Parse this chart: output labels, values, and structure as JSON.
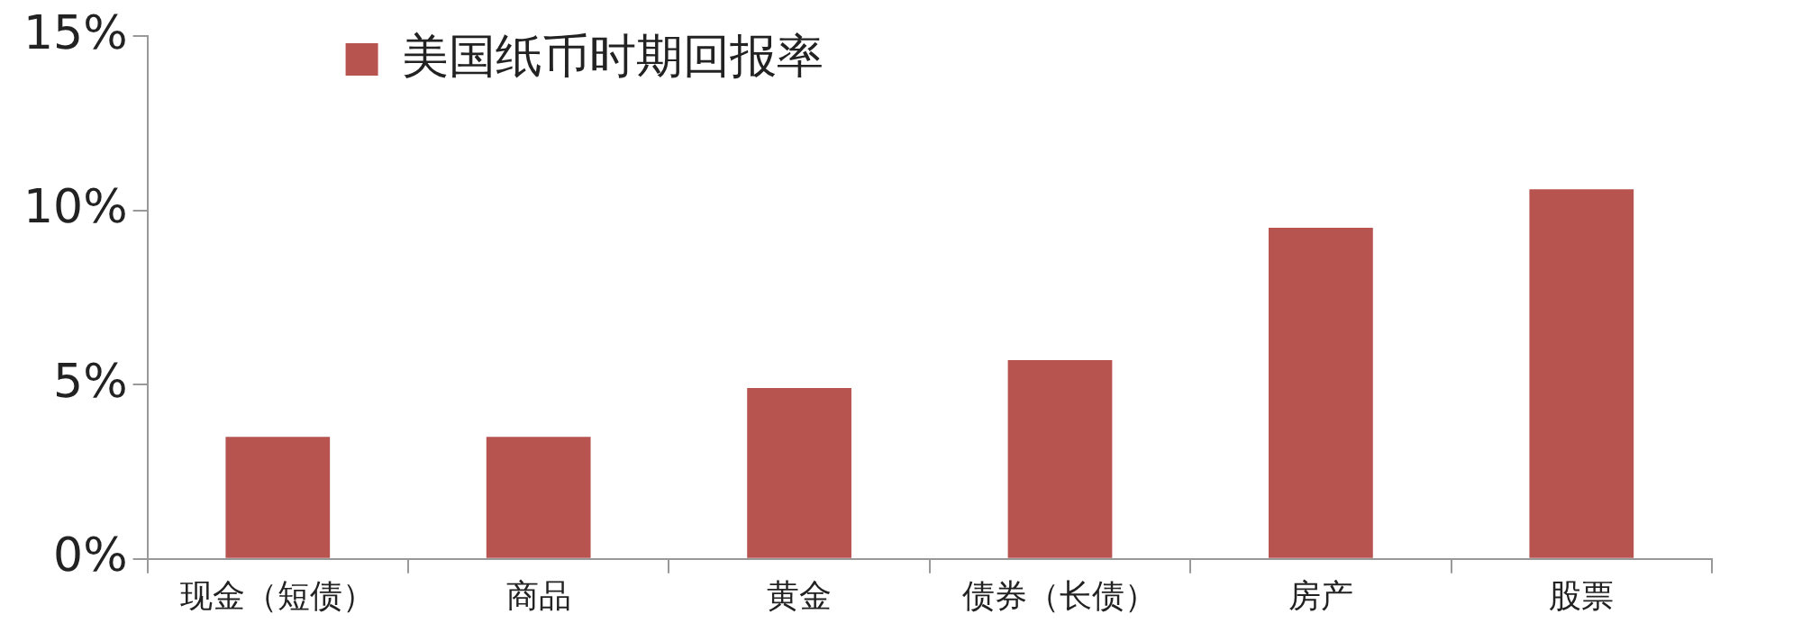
{
  "chart_data": {
    "type": "bar",
    "categories": [
      "现金（短债）",
      "商品",
      "黄金",
      "债券（长债）",
      "房产",
      "股票"
    ],
    "series": [
      {
        "name": "美国纸币时期回报率",
        "color": "#b85450",
        "values": [
          3.5,
          3.5,
          4.9,
          5.7,
          9.5,
          10.6
        ]
      }
    ],
    "ylim": [
      0,
      15
    ],
    "yticks": [
      {
        "value": 0,
        "label": "0%"
      },
      {
        "value": 5,
        "label": "5%"
      },
      {
        "value": 10,
        "label": "10%"
      },
      {
        "value": 15,
        "label": "15%"
      }
    ],
    "grid": false,
    "legend": "top left"
  }
}
